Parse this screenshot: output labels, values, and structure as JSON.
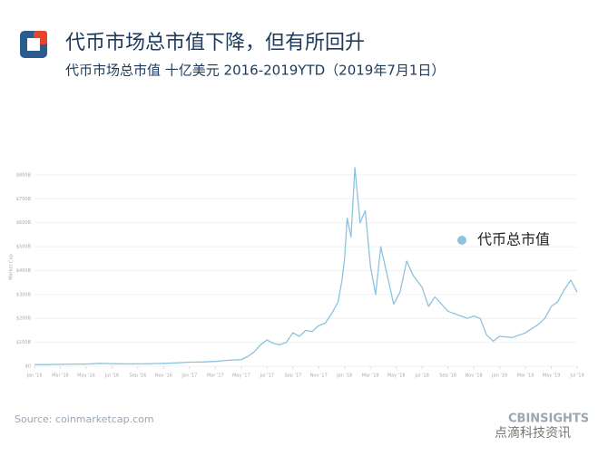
{
  "header": {
    "title": "代币市场总市值下降，但有所回升",
    "subtitle": "代币市场总市值 十亿美元 2016-2019YTD（2019年7月1日）"
  },
  "chart_data": {
    "type": "line",
    "y_label": "Market Cap",
    "x": [
      0,
      1,
      2,
      3,
      4,
      5,
      6,
      7,
      8,
      9,
      10,
      11,
      12,
      13,
      14,
      15,
      16,
      16.5,
      17,
      17.5,
      18,
      18.5,
      19,
      19.5,
      20,
      20.5,
      21,
      21.5,
      22,
      22.5,
      23,
      23.5,
      23.8,
      24,
      24.2,
      24.5,
      24.8,
      25.2,
      25.6,
      26,
      26.4,
      26.8,
      27.3,
      27.8,
      28.3,
      28.8,
      29.3,
      30,
      30.5,
      31,
      32,
      33,
      33.5,
      34,
      34.5,
      35,
      35.5,
      36,
      37,
      38,
      39,
      39.5,
      40,
      40.5,
      41,
      41.5,
      42
    ],
    "series": [
      {
        "name": "代币总市值",
        "color": "#8cc3de",
        "values": [
          7,
          7,
          8,
          9,
          9,
          12,
          11,
          10,
          10,
          11,
          12,
          14,
          17,
          18,
          20,
          25,
          28,
          40,
          60,
          90,
          110,
          95,
          90,
          100,
          140,
          125,
          150,
          145,
          170,
          180,
          220,
          270,
          360,
          450,
          620,
          540,
          830,
          600,
          650,
          420,
          300,
          500,
          380,
          260,
          310,
          440,
          380,
          330,
          250,
          290,
          230,
          210,
          200,
          210,
          200,
          130,
          105,
          125,
          120,
          140,
          175,
          200,
          250,
          270,
          320,
          360,
          310
        ]
      }
    ],
    "xlim": [
      0,
      42
    ],
    "xticks": [
      {
        "value": 0,
        "label": "Jan '16"
      },
      {
        "value": 2,
        "label": "Mar '16"
      },
      {
        "value": 4,
        "label": "May '16"
      },
      {
        "value": 6,
        "label": "Jul '16"
      },
      {
        "value": 8,
        "label": "Sep '16"
      },
      {
        "value": 10,
        "label": "Nov '16"
      },
      {
        "value": 12,
        "label": "Jan '17"
      },
      {
        "value": 14,
        "label": "Mar '17"
      },
      {
        "value": 16,
        "label": "May '17"
      },
      {
        "value": 18,
        "label": "Jul '17"
      },
      {
        "value": 20,
        "label": "Sep '17"
      },
      {
        "value": 22,
        "label": "Nov '17"
      },
      {
        "value": 24,
        "label": "Jan '18"
      },
      {
        "value": 26,
        "label": "Mar '18"
      },
      {
        "value": 28,
        "label": "May '18"
      },
      {
        "value": 30,
        "label": "Jul '18"
      },
      {
        "value": 32,
        "label": "Sep '18"
      },
      {
        "value": 34,
        "label": "Nov '18"
      },
      {
        "value": 36,
        "label": "Jan '19"
      },
      {
        "value": 38,
        "label": "Mar '19"
      },
      {
        "value": 40,
        "label": "May '19"
      },
      {
        "value": 42,
        "label": "Jul '19"
      }
    ],
    "ylim": [
      0,
      830
    ],
    "yticks": [
      {
        "value": 0,
        "label": "$0"
      },
      {
        "value": 100,
        "label": "$100B"
      },
      {
        "value": 200,
        "label": "$200B"
      },
      {
        "value": 300,
        "label": "$300B"
      },
      {
        "value": 400,
        "label": "$400B"
      },
      {
        "value": 500,
        "label": "$500B"
      },
      {
        "value": 600,
        "label": "$600B"
      },
      {
        "value": 700,
        "label": "$700B"
      },
      {
        "value": 800,
        "label": "$800B"
      }
    ],
    "grid": true
  },
  "source": "Source: coinmarketcap.com",
  "brand": "CBINSIGHTS",
  "watermark": "点滴科技资讯"
}
